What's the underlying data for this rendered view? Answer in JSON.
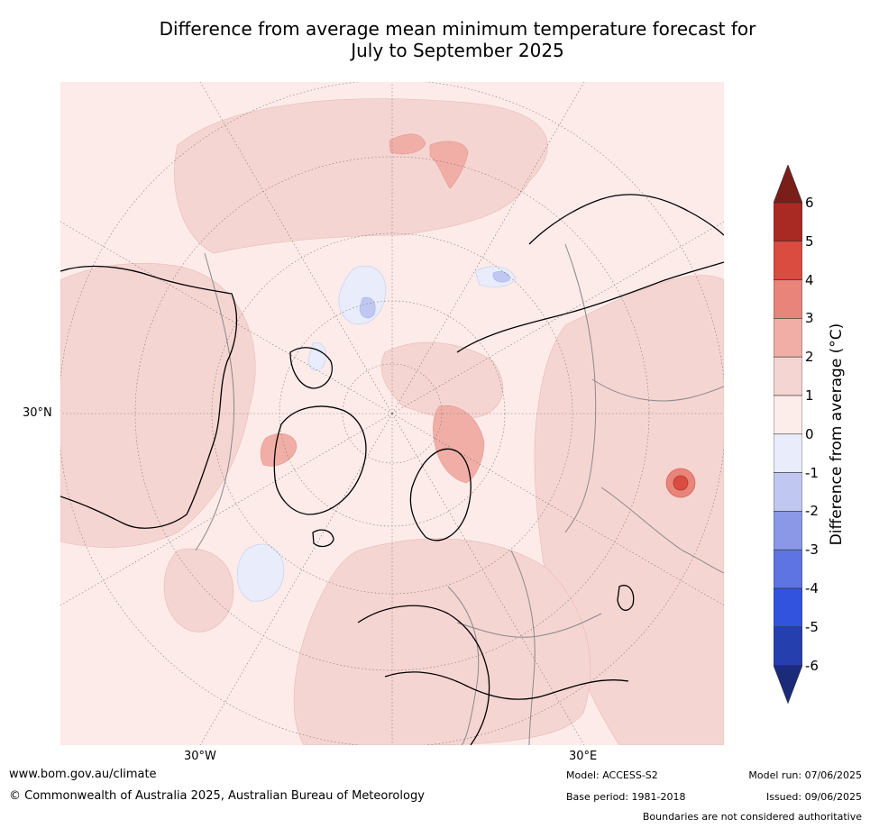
{
  "title_line1": "Difference from average mean minimum temperature forecast for",
  "title_line2": "July to September 2025",
  "lat_label": "30°N",
  "lon_labels": [
    "30°W",
    "30°E"
  ],
  "colorbar": {
    "title": "Difference from average (°C)",
    "ticks": [
      "6",
      "5",
      "4",
      "3",
      "2",
      "1",
      "0",
      "-1",
      "-2",
      "-3",
      "-4",
      "-5",
      "-6"
    ],
    "colors": [
      "#7a1e1a",
      "#a82a22",
      "#d94c3f",
      "#e9847b",
      "#f0aea7",
      "#f5d5d2",
      "#fcecea",
      "#e8ecfb",
      "#c0c8f1",
      "#8a98e7",
      "#5d74e2",
      "#3153de",
      "#263fae",
      "#1c2a7a"
    ]
  },
  "footer": {
    "website": "www.bom.gov.au/climate",
    "copyright": "© Commonwealth of Australia 2025, Australian Bureau of Meteorology",
    "model": "Model: ACCESS-S2",
    "base_period": "Base period: 1981-2018",
    "model_run": "Model run: 07/06/2025",
    "issued": "Issued: 09/06/2025",
    "disclaimer": "Boundaries are not considered authoritative"
  }
}
